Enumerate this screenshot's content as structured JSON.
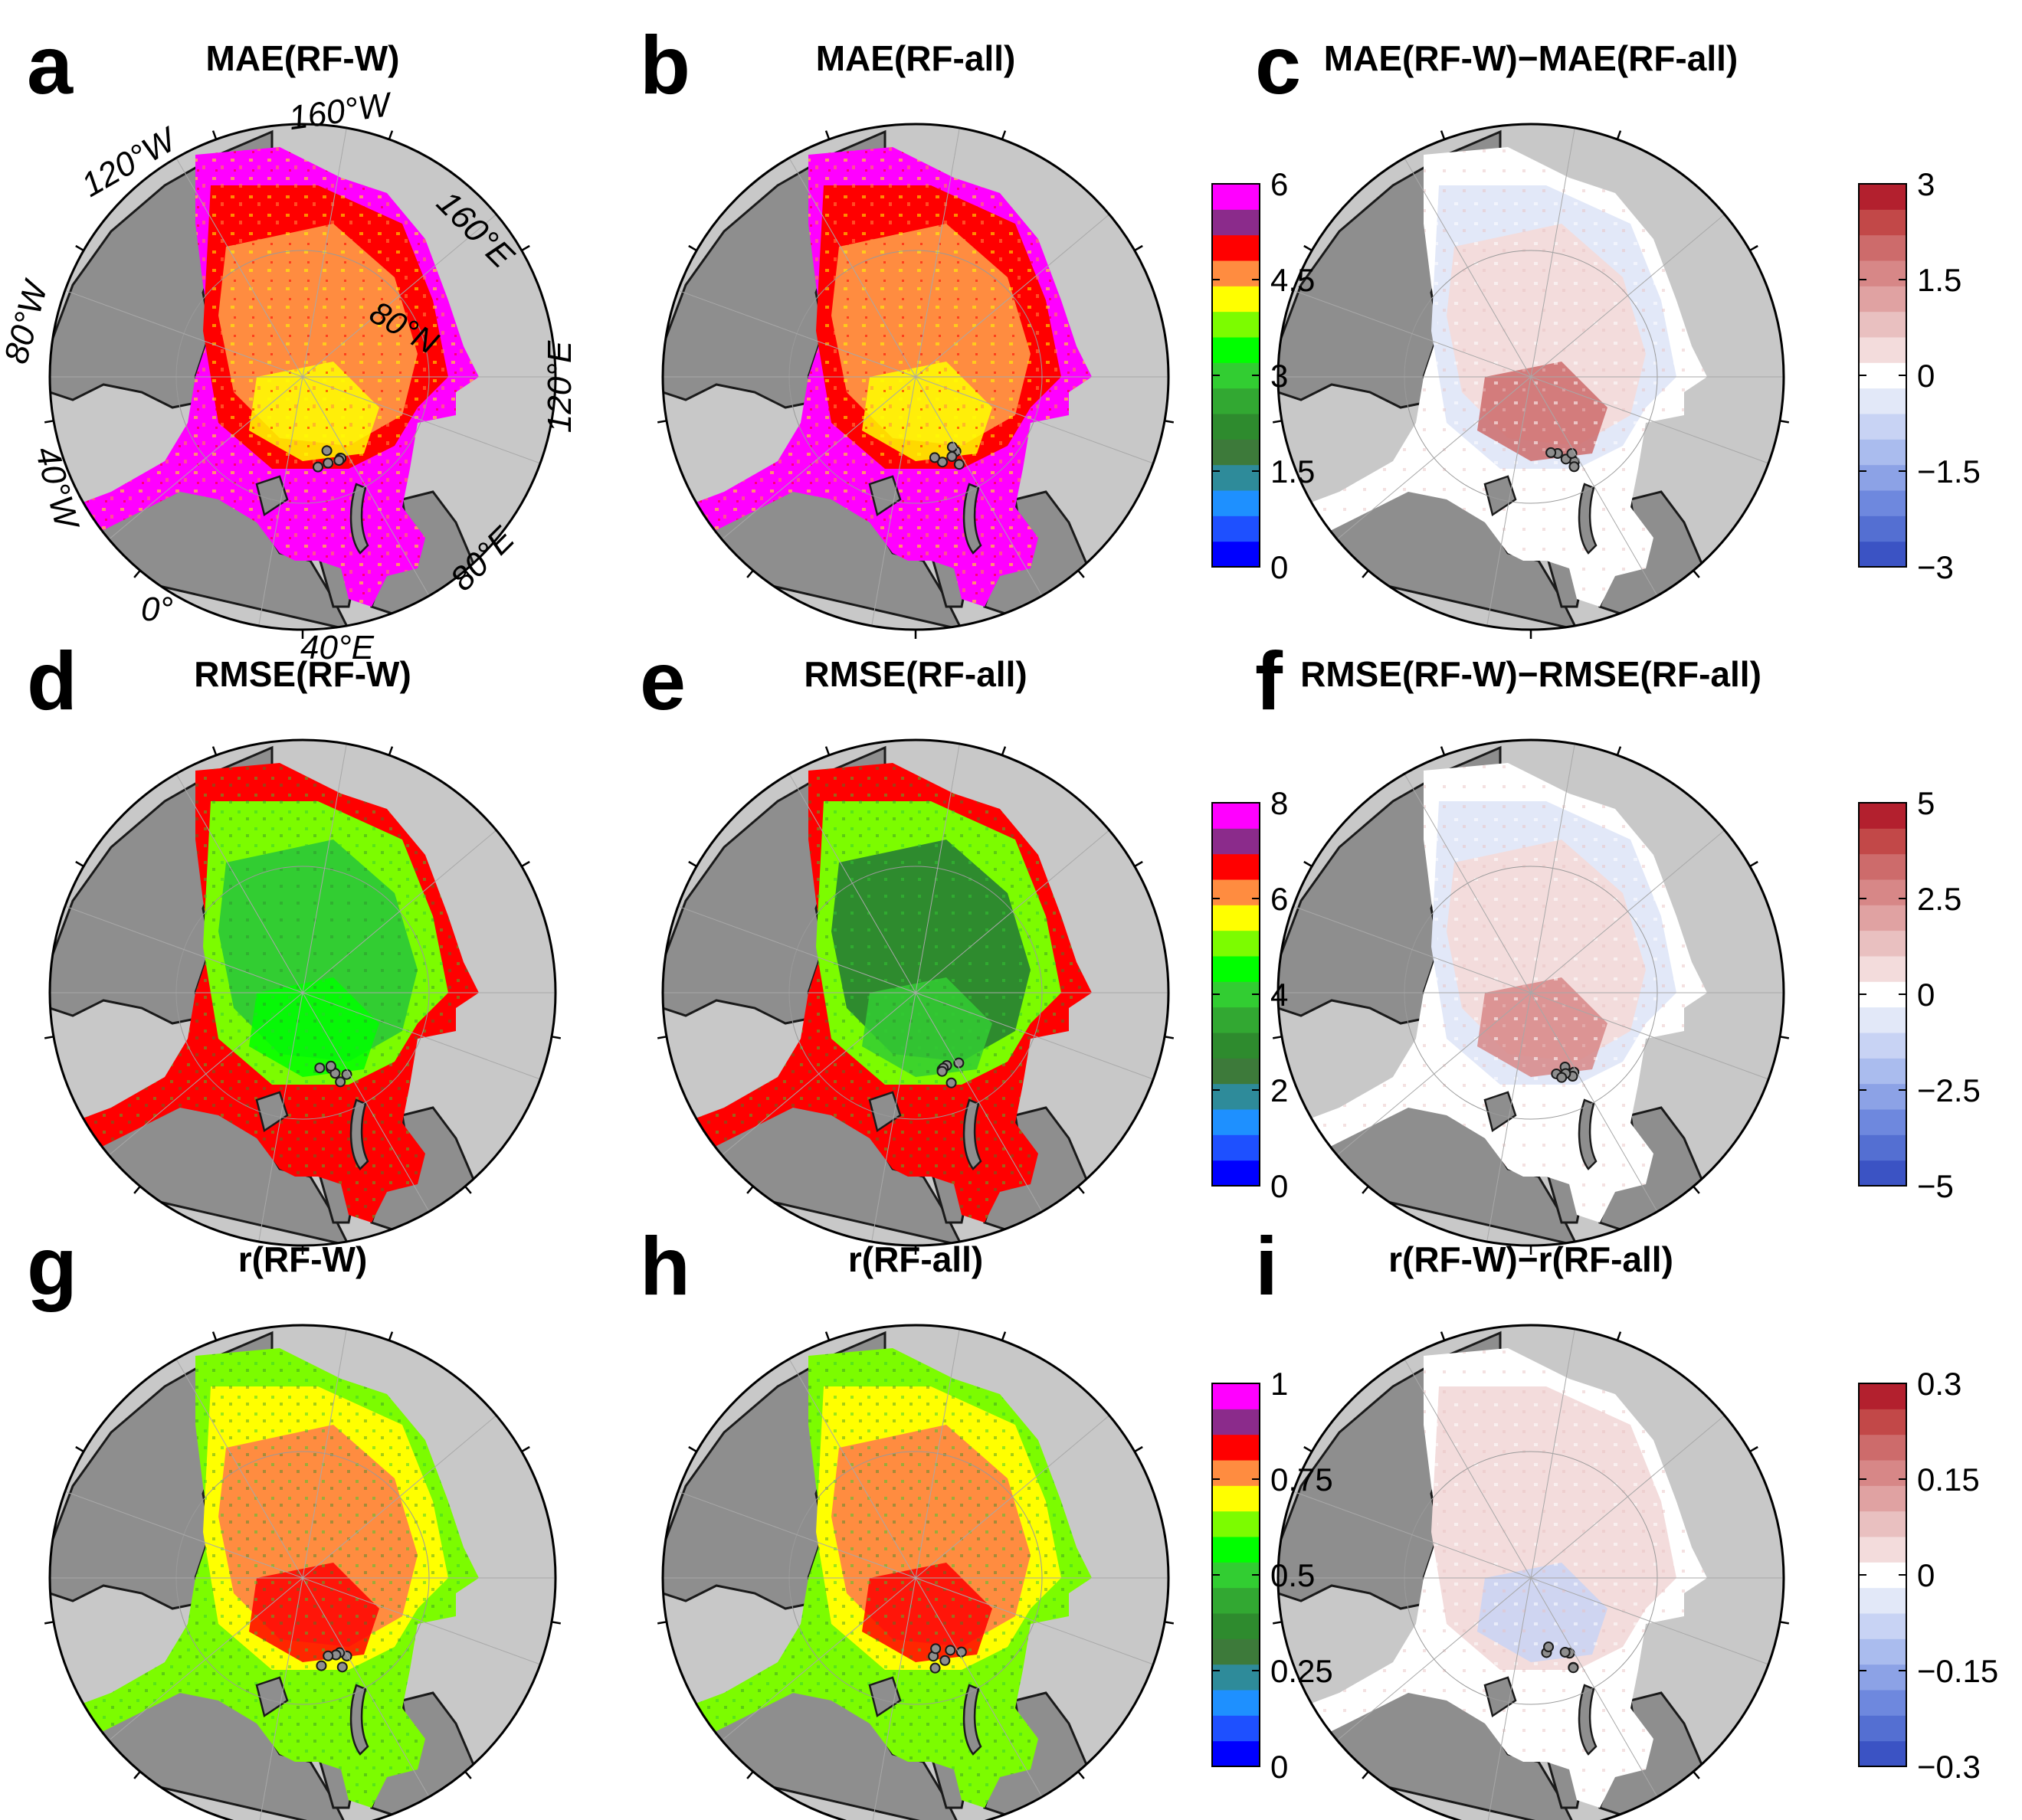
{
  "panels": [
    {
      "letter": "a",
      "title": "MAE(RF-W)",
      "scale": 0,
      "kind": "mae-w"
    },
    {
      "letter": "b",
      "title": "MAE(RF-all)",
      "scale": 0,
      "kind": "mae-all"
    },
    {
      "letter": "c",
      "title": "MAE(RF-W)−MAE(RF-all)",
      "scale": 1,
      "kind": "diff-mae"
    },
    {
      "letter": "d",
      "title": "RMSE(RF-W)",
      "scale": 0,
      "kind": "rmse-w"
    },
    {
      "letter": "e",
      "title": "RMSE(RF-all)",
      "scale": 0,
      "kind": "rmse-all"
    },
    {
      "letter": "f",
      "title": "RMSE(RF-W)−RMSE(RF-all)",
      "scale": 1,
      "kind": "diff-rmse"
    },
    {
      "letter": "g",
      "title": "r(RF-W)",
      "scale": 0,
      "kind": "r-w"
    },
    {
      "letter": "h",
      "title": "r(RF-all)",
      "scale": 0,
      "kind": "r-all"
    },
    {
      "letter": "i",
      "title": "r(RF-W)−r(RF-all)",
      "scale": 1,
      "kind": "diff-r"
    }
  ],
  "colorbars": [
    {
      "row": 0,
      "type": "sequential",
      "ticks": [
        "6",
        "4.5",
        "3",
        "1.5",
        "0"
      ]
    },
    {
      "row": 0,
      "type": "diverging",
      "ticks": [
        "3",
        "1.5",
        "0",
        "−1.5",
        "−3"
      ]
    },
    {
      "row": 1,
      "type": "sequential",
      "ticks": [
        "8",
        "6",
        "4",
        "2",
        "0"
      ]
    },
    {
      "row": 1,
      "type": "diverging",
      "ticks": [
        "5",
        "2.5",
        "0",
        "−2.5",
        "−5"
      ]
    },
    {
      "row": 2,
      "type": "sequential",
      "ticks": [
        "1",
        "0.75",
        "0.5",
        "0.25",
        "0"
      ]
    },
    {
      "row": 2,
      "type": "diverging",
      "ticks": [
        "0.3",
        "0.15",
        "0",
        "−0.15",
        "−0.3"
      ]
    }
  ],
  "geo_labels": {
    "lon": [
      "160°W",
      "120°W",
      "160°E",
      "80°W",
      "120°E",
      "40°W",
      "80°E",
      "0°",
      "40°E"
    ],
    "lat": "80°N"
  },
  "colors": {
    "ocean_background": "#c8c8c8",
    "land": "#8e8e8e",
    "coastline": "#1a1a1a",
    "sequential_scale": [
      "#0000ff",
      "#1e50ff",
      "#1e90ff",
      "#2e8b9a",
      "#3d7a3a",
      "#2e8b2e",
      "#32a832",
      "#32cd32",
      "#00ff00",
      "#7cfc00",
      "#ffff00",
      "#ff8c40",
      "#ff0000",
      "#8b2b8b",
      "#ff00ff"
    ],
    "diverging_scale": [
      "#3b53c4",
      "#546fd2",
      "#6e88de",
      "#8ca2e6",
      "#aabcee",
      "#c8d3f4",
      "#e2e8f8",
      "#ffffff",
      "#f3dcdc",
      "#e9c0c0",
      "#e0a2a2",
      "#d78787",
      "#cd6b6b",
      "#c24848",
      "#b3202e"
    ]
  }
}
